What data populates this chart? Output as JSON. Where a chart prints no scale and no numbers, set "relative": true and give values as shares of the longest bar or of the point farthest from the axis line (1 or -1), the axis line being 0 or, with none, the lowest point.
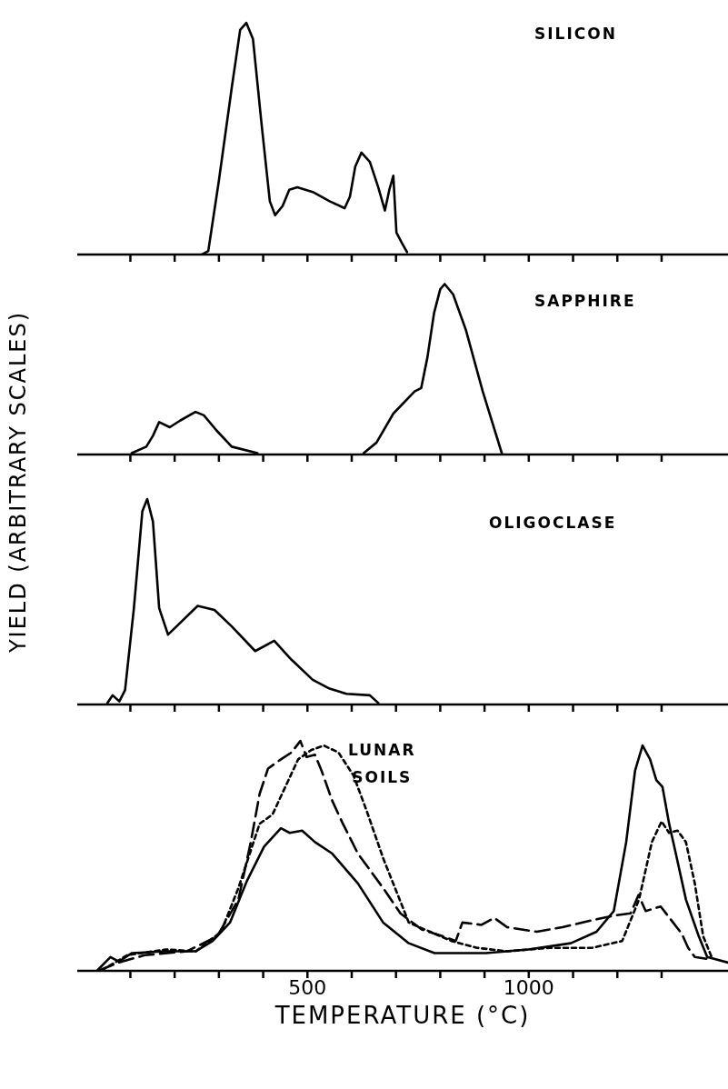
{
  "chart_data": [
    {
      "type": "line",
      "title": "SILICON",
      "ylabel": "YIELD (ARBITRARY SCALES)",
      "relative": true,
      "xlim": [
        -20,
        1450
      ],
      "xticks": [
        {
          "value": 100,
          "label": null
        },
        {
          "value": 200,
          "label": null
        },
        {
          "value": 300,
          "label": null
        },
        {
          "value": 400,
          "label": null
        },
        {
          "value": 500,
          "label": null
        },
        {
          "value": 600,
          "label": null
        },
        {
          "value": 700,
          "label": null
        },
        {
          "value": 800,
          "label": null
        },
        {
          "value": 900,
          "label": null
        },
        {
          "value": 1000,
          "label": null
        },
        {
          "value": 1100,
          "label": null
        },
        {
          "value": 1200,
          "label": null
        },
        {
          "value": 1300,
          "label": null
        }
      ],
      "tick_labels": false,
      "marker": "none",
      "series": [
        {
          "color": "#000000",
          "line_style": "solid",
          "x": [
            262,
            276,
            300,
            329,
            348,
            362,
            377,
            396,
            415,
            427,
            444,
            459,
            477,
            512,
            550,
            584,
            596,
            608,
            622,
            641,
            660,
            675,
            685,
            694,
            701,
            714,
            725
          ],
          "values": [
            0,
            0.015,
            0.32,
            0.72,
            0.97,
            1.0,
            0.93,
            0.57,
            0.23,
            0.17,
            0.21,
            0.28,
            0.29,
            0.27,
            0.23,
            0.2,
            0.25,
            0.38,
            0.44,
            0.4,
            0.29,
            0.19,
            0.28,
            0.34,
            0.095,
            0.048,
            0.01
          ]
        }
      ]
    },
    {
      "type": "line",
      "title": "SAPPHIRE",
      "relative": true,
      "xlim": [
        -20,
        1450
      ],
      "xticks": [
        {
          "value": 100,
          "label": null
        },
        {
          "value": 200,
          "label": null
        },
        {
          "value": 300,
          "label": null
        },
        {
          "value": 400,
          "label": null
        },
        {
          "value": 500,
          "label": null
        },
        {
          "value": 600,
          "label": null
        },
        {
          "value": 700,
          "label": null
        },
        {
          "value": 800,
          "label": null
        },
        {
          "value": 900,
          "label": null
        },
        {
          "value": 1000,
          "label": null
        },
        {
          "value": 1100,
          "label": null
        },
        {
          "value": 1200,
          "label": null
        },
        {
          "value": 1300,
          "label": null
        }
      ],
      "tick_labels": false,
      "marker": "none",
      "series": [
        {
          "color": "#000000",
          "line_style": "solid",
          "x": [
            103,
            136,
            151,
            165,
            189,
            213,
            247,
            266,
            295,
            329,
            387,
            500,
            627,
            656,
            694,
            742,
            757,
            771,
            786,
            800,
            810,
            829,
            858,
            896,
            939
          ],
          "values": [
            0.008,
            0.046,
            0.11,
            0.19,
            0.16,
            0.2,
            0.25,
            0.23,
            0.14,
            0.046,
            0.008,
            null,
            0.008,
            0.07,
            0.24,
            0.37,
            0.39,
            0.57,
            0.83,
            0.97,
            1.0,
            0.94,
            0.73,
            0.37,
            0.008
          ]
        }
      ]
    },
    {
      "type": "line",
      "title": "OLIGOCLASE",
      "relative": true,
      "xlim": [
        -20,
        1450
      ],
      "xticks": [
        {
          "value": 100,
          "label": null
        },
        {
          "value": 200,
          "label": null
        },
        {
          "value": 300,
          "label": null
        },
        {
          "value": 400,
          "label": null
        },
        {
          "value": 500,
          "label": null
        },
        {
          "value": 600,
          "label": null
        },
        {
          "value": 700,
          "label": null
        },
        {
          "value": 800,
          "label": null
        },
        {
          "value": 900,
          "label": null
        },
        {
          "value": 1000,
          "label": null
        },
        {
          "value": 1100,
          "label": null
        },
        {
          "value": 1200,
          "label": null
        },
        {
          "value": 1300,
          "label": null
        }
      ],
      "tick_labels": false,
      "marker": "none",
      "series": [
        {
          "color": "#000000",
          "line_style": "solid",
          "x": [
            48,
            60,
            75,
            88,
            108,
            127,
            138,
            151,
            165,
            185,
            209,
            252,
            290,
            329,
            382,
            425,
            463,
            512,
            550,
            588,
            641,
            660
          ],
          "values": [
            0.007,
            0.045,
            0.015,
            0.07,
            0.47,
            0.94,
            1.0,
            0.89,
            0.47,
            0.34,
            0.39,
            0.48,
            0.46,
            0.38,
            0.26,
            0.31,
            0.22,
            0.12,
            0.077,
            0.052,
            0.045,
            0.007
          ]
        }
      ]
    },
    {
      "type": "line",
      "title": "LUNAR\nSOILS",
      "xlabel": "TEMPERATURE (°C)",
      "relative": true,
      "xlim": [
        -20,
        1450
      ],
      "xticks": [
        {
          "value": 100,
          "label": null
        },
        {
          "value": 200,
          "label": null
        },
        {
          "value": 300,
          "label": null
        },
        {
          "value": 400,
          "label": null
        },
        500,
        {
          "value": 600,
          "label": null
        },
        {
          "value": 700,
          "label": null
        },
        {
          "value": 800,
          "label": null
        },
        {
          "value": 900,
          "label": null
        },
        1000,
        {
          "value": 1100,
          "label": null
        },
        {
          "value": 1200,
          "label": null
        },
        {
          "value": 1300,
          "label": null
        }
      ],
      "tick_labels": "x",
      "marker": "none",
      "series": [
        {
          "color": "#000000",
          "line_style": "solid",
          "x": [
            26,
            55,
            74,
            103,
            180,
            248,
            286,
            325,
            363,
            402,
            440,
            460,
            488,
            517,
            556,
            614,
            671,
            729,
            787,
            903,
            999,
            1095,
            1153,
            1192,
            1220,
            1240,
            1257,
            1274,
            1288,
            1302,
            1317,
            1331,
            1355,
            1384,
            1403,
            1450
          ],
          "values": [
            0.003,
            0.06,
            0.04,
            0.077,
            0.085,
            0.085,
            0.13,
            0.21,
            0.39,
            0.54,
            0.62,
            0.6,
            0.61,
            0.56,
            0.51,
            0.38,
            0.21,
            0.12,
            0.077,
            0.077,
            0.093,
            0.12,
            0.17,
            0.26,
            0.56,
            0.87,
            0.98,
            0.92,
            0.83,
            0.8,
            0.64,
            0.52,
            0.31,
            0.15,
            0.06,
            0.036
          ]
        },
        {
          "color": "#000000",
          "line_style": "dashed",
          "x": [
            31,
            74,
            132,
            228,
            296,
            344,
            372,
            392,
            411,
            440,
            464,
            484,
            498,
            517,
            532,
            556,
            580,
            614,
            671,
            710,
            758,
            806,
            835,
            850,
            893,
            922,
            951,
            1018,
            1076,
            1143,
            1192,
            1230,
            1248,
            1264,
            1298,
            1326,
            1346,
            1360,
            1375,
            1403
          ],
          "values": [
            0.003,
            0.036,
            0.068,
            0.085,
            0.15,
            0.31,
            0.56,
            0.77,
            0.88,
            0.92,
            0.95,
            1.0,
            0.93,
            0.94,
            0.87,
            0.74,
            0.64,
            0.51,
            0.36,
            0.25,
            0.18,
            0.15,
            0.13,
            0.21,
            0.2,
            0.23,
            0.19,
            0.17,
            0.19,
            0.22,
            0.24,
            0.25,
            0.33,
            0.26,
            0.28,
            0.21,
            0.16,
            0.1,
            0.06,
            0.052
          ]
        },
        {
          "color": "#000000",
          "line_style": "dotted",
          "x": [
            36,
            93,
            180,
            248,
            305,
            344,
            392,
            421,
            450,
            479,
            508,
            537,
            570,
            604,
            633,
            671,
            700,
            729,
            777,
            825,
            883,
            951,
            1047,
            1143,
            1211,
            1249,
            1278,
            1300,
            1317,
            1336,
            1355,
            1375,
            1394,
            1413
          ],
          "values": [
            0.003,
            0.068,
            0.093,
            0.085,
            0.17,
            0.36,
            0.64,
            0.68,
            0.8,
            0.92,
            0.96,
            0.98,
            0.95,
            0.85,
            0.7,
            0.49,
            0.35,
            0.21,
            0.17,
            0.13,
            0.1,
            0.085,
            0.1,
            0.1,
            0.13,
            0.31,
            0.56,
            0.65,
            0.6,
            0.61,
            0.56,
            0.38,
            0.15,
            0.06
          ]
        }
      ]
    }
  ]
}
